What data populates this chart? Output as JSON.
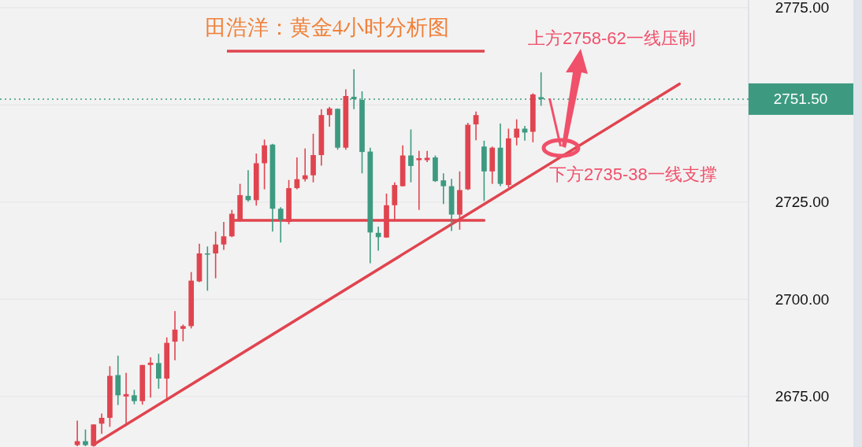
{
  "chart_data": {
    "type": "candlestick",
    "title": "田浩洋：黄金4小时分析图",
    "ylim": [
      2662,
      2777
    ],
    "yticks": [
      {
        "value": 2675,
        "label": "2675.00"
      },
      {
        "value": 2700,
        "label": "2700.00"
      },
      {
        "value": 2725,
        "label": "2725.00"
      },
      {
        "value": 2750,
        "label": null
      },
      {
        "value": 2775,
        "label": "2775.00"
      }
    ],
    "grid": "y",
    "tick_labels": "y",
    "categories": [
      null,
      null,
      null,
      null,
      null,
      null,
      null,
      null,
      null,
      null,
      null,
      null,
      null,
      null,
      null,
      null,
      null,
      null,
      null,
      null,
      null,
      null,
      null,
      null,
      null,
      null,
      null,
      null,
      null,
      null,
      null,
      null,
      null,
      null,
      null,
      null,
      null,
      null,
      null,
      null,
      null,
      null,
      null,
      null,
      null,
      null,
      null,
      null,
      null,
      null,
      null,
      null,
      null,
      null,
      null,
      null,
      null,
      null,
      null,
      null,
      null,
      null,
      null,
      null,
      null,
      null,
      null,
      null,
      null,
      null,
      null,
      null,
      null,
      null,
      null,
      null,
      null,
      null,
      null,
      null,
      null,
      null,
      null,
      null,
      null,
      null,
      null,
      null,
      null,
      null,
      null,
      null
    ],
    "ohlc": [
      null,
      null,
      null,
      null,
      null,
      null,
      null,
      null,
      null,
      [
        2662.5,
        2668.8,
        2662.2,
        2663.5
      ],
      [
        2663.5,
        2666.5,
        2662.2,
        2662.5
      ],
      [
        2662.3,
        2667.8,
        2662.1,
        2667.8
      ],
      [
        2668.0,
        2670.6,
        2665.4,
        2669.5
      ],
      [
        2669.5,
        2682.8,
        2667.2,
        2680.3
      ],
      [
        2680.5,
        2685.5,
        2672.8,
        2675.3
      ],
      [
        2675.0,
        2681.1,
        2667.4,
        2675.6
      ],
      [
        2675.3,
        2676.7,
        2673.0,
        2673.8
      ],
      [
        2673.8,
        2683.1,
        2672.9,
        2683.1
      ],
      [
        2683.1,
        2685.1,
        2674.7,
        2683.7
      ],
      [
        2683.6,
        2686.0,
        2677.0,
        2679.6
      ],
      [
        2679.6,
        2690.2,
        2673.8,
        2688.8
      ],
      [
        2689.1,
        2697.0,
        2684.3,
        2692.2
      ],
      [
        2692.4,
        2693.5,
        2689.2,
        2693.1
      ],
      [
        2693.1,
        2707.0,
        2692.5,
        2704.8
      ],
      [
        2704.6,
        2714.3,
        2704.4,
        2711.8
      ],
      [
        2711.8,
        2713.6,
        2702.2,
        2711.5
      ],
      [
        2711.8,
        2717.4,
        2705.4,
        2714.1
      ],
      [
        2714.1,
        2719.9,
        2712.7,
        2716.2
      ],
      [
        2716.2,
        2723.0,
        2716.0,
        2722.0
      ],
      [
        2720.2,
        2729.7,
        2720.0,
        2726.8
      ],
      [
        2726.6,
        2733.2,
        2725.1,
        2725.5
      ],
      [
        2725.5,
        2737.5,
        2724.1,
        2735.0
      ],
      [
        2735.0,
        2741.1,
        2728.3,
        2739.6
      ],
      [
        2739.8,
        2740.0,
        2717.4,
        2723.3
      ],
      [
        2723.3,
        2723.7,
        2714.6,
        2720.5
      ],
      [
        2719.9,
        2730.7,
        2719.3,
        2728.6
      ],
      [
        2728.6,
        2736.5,
        2728.3,
        2730.9
      ],
      [
        2730.9,
        2738.8,
        2730.3,
        2731.9
      ],
      [
        2731.9,
        2742.6,
        2730.1,
        2737.1
      ],
      [
        2737.1,
        2748.9,
        2734.4,
        2747.4
      ],
      [
        2747.4,
        2749.5,
        2744.4,
        2749.1
      ],
      [
        2749.0,
        2749.1,
        2738.5,
        2739.0
      ],
      [
        2739.0,
        2754.0,
        2738.5,
        2752.3
      ],
      [
        2752.1,
        2759.2,
        2748.9,
        2751.5
      ],
      [
        2751.3,
        2753.5,
        2732.4,
        2737.9
      ],
      [
        2738.0,
        2739.0,
        2709.3,
        2717.2
      ],
      [
        2717.1,
        2718.7,
        2712.5,
        2716.0
      ],
      [
        2715.9,
        2727.2,
        2715.8,
        2724.2
      ],
      [
        2724.2,
        2730.1,
        2720.5,
        2729.4
      ],
      [
        2729.1,
        2739.6,
        2729.0,
        2737.0
      ],
      [
        2737.0,
        2743.7,
        2730.1,
        2734.3
      ],
      [
        2735.8,
        2738.2,
        2723.0,
        2736.3
      ],
      [
        2735.8,
        2738.2,
        2735.3,
        2736.4
      ],
      [
        2736.5,
        2737.0,
        2730.2,
        2730.4
      ],
      [
        2730.6,
        2732.4,
        2724.5,
        2729.1
      ],
      [
        2729.1,
        2731.0,
        2717.6,
        2721.8
      ],
      [
        2721.8,
        2732.9,
        2717.9,
        2728.1
      ],
      [
        2728.3,
        2745.4,
        2728.1,
        2744.9
      ],
      [
        2745.0,
        2748.3,
        2740.9,
        2747.4
      ],
      [
        2739.3,
        2740.8,
        2725.3,
        2732.9
      ],
      [
        2732.9,
        2739.3,
        2729.7,
        2739.0
      ],
      [
        2739.0,
        2745.2,
        2729.1,
        2729.7
      ],
      [
        2729.4,
        2743.9,
        2728.8,
        2741.4
      ],
      [
        2741.6,
        2746.3,
        2739.6,
        2743.9
      ],
      [
        2743.9,
        2744.6,
        2740.8,
        2742.9
      ],
      [
        2743.1,
        2753.0,
        2740.4,
        2752.7
      ],
      [
        2752.0,
        2758.4,
        2749.8,
        2751.5
      ],
      null,
      null,
      null,
      null,
      null,
      null,
      null,
      null,
      null,
      null,
      null,
      null,
      null,
      null,
      null,
      null,
      null,
      null,
      null,
      null,
      null,
      null,
      null,
      null,
      null
    ],
    "colors": [
      null,
      null,
      null,
      null,
      null,
      null,
      null,
      null,
      null,
      "#e0444f",
      "#3d9a80",
      "#e0444f",
      "#e0444f",
      "#e0444f",
      "#3d9a80",
      "#e0444f",
      "#3d9a80",
      "#e0444f",
      "#e0444f",
      "#3d9a80",
      "#e0444f",
      "#e0444f",
      "#e0444f",
      "#e0444f",
      "#e0444f",
      "#3d9a80",
      "#e0444f",
      "#e0444f",
      "#e0444f",
      "#e0444f",
      "#3d9a80",
      "#e0444f",
      "#e0444f",
      "#3d9a80",
      "#3d9a80",
      "#e0444f",
      "#e0444f",
      "#e0444f",
      "#e0444f",
      "#e0444f",
      "#e0444f",
      "#3d9a80",
      "#e0444f",
      "#3d9a80",
      "#3d9a80",
      "#3d9a80",
      "#3d9a80",
      "#e0444f",
      "#e0444f",
      "#e0444f",
      "#3d9a80",
      "#e0444f",
      "#e0444f",
      "#3d9a80",
      "#3d9a80",
      "#3d9a80",
      "#e0444f",
      "#e0444f",
      "#e0444f",
      "#3d9a80",
      "#e0444f",
      "#3d9a80",
      "#e0444f",
      "#e0444f",
      "#3d9a80",
      "#e0444f",
      "#3d9a80",
      null,
      null,
      null,
      null,
      null,
      null,
      null,
      null,
      null,
      null,
      null,
      null,
      null,
      null,
      null,
      null,
      null,
      null,
      null,
      null,
      null,
      null,
      null,
      null,
      null
    ],
    "series": [
      {
        "type": "line",
        "color": "#e0444f",
        "values": [
          null,
          null,
          null,
          null,
          null,
          null,
          null,
          null,
          null,
          null,
          null,
          2662.6,
          null,
          null,
          null,
          null,
          null,
          null,
          null,
          null,
          null,
          null,
          null,
          null,
          null,
          null,
          null,
          null,
          null,
          null,
          null,
          null,
          null,
          null,
          null,
          null,
          null,
          null,
          null,
          null,
          null,
          null,
          null,
          null,
          null,
          null,
          null,
          null,
          null,
          null,
          null,
          null,
          null,
          null,
          null,
          null,
          null,
          null,
          null,
          null,
          null,
          null,
          null,
          null,
          null,
          null,
          null,
          null,
          null,
          null,
          null,
          null,
          null,
          null,
          null,
          null,
          null,
          null,
          null,
          null,
          null,
          null,
          null,
          2755.4,
          null,
          null,
          null,
          null,
          null,
          null,
          null,
          null
        ]
      },
      {
        "type": "line",
        "color": "#e0444f",
        "values": [
          null,
          null,
          null,
          null,
          null,
          null,
          null,
          null,
          null,
          null,
          null,
          null,
          null,
          null,
          null,
          null,
          null,
          null,
          null,
          null,
          null,
          null,
          null,
          null,
          null,
          null,
          null,
          null,
          2720.3,
          null,
          null,
          null,
          null,
          null,
          null,
          null,
          null,
          null,
          null,
          null,
          null,
          null,
          null,
          null,
          null,
          null,
          null,
          null,
          null,
          null,
          null,
          null,
          null,
          null,
          null,
          null,
          null,
          null,
          null,
          2720.3,
          null,
          null,
          null,
          null,
          null,
          null,
          null,
          null,
          null,
          null,
          null,
          null,
          null,
          null,
          null,
          null,
          null,
          null,
          null,
          null,
          null,
          null,
          null,
          null,
          null,
          null,
          null,
          null,
          null,
          null,
          null,
          null
        ]
      }
    ],
    "ref_lines": [
      {
        "axis": "y",
        "value": 2751.5,
        "label": "2751.50",
        "color": "#3d9a80",
        "line_style": "dotted"
      }
    ],
    "annotations": [
      "上方2758-62一线压制",
      "下方2735-38一线支撑"
    ]
  }
}
